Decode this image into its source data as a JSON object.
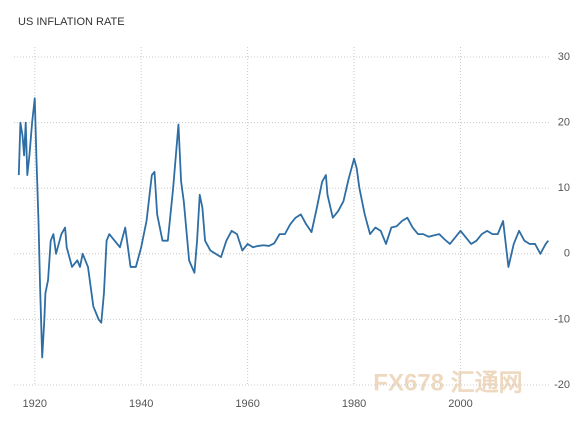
{
  "chart_data": {
    "type": "line",
    "title": "US INFLATION RATE",
    "watermark": "FX678 汇通网",
    "x": [
      1917,
      1917.3,
      1917.7,
      1918,
      1918.3,
      1918.6,
      1919,
      1919.5,
      1920,
      1920.3,
      1920.7,
      1921,
      1921.4,
      1921.8,
      1922,
      1922.5,
      1923,
      1923.5,
      1924,
      1925,
      1925.7,
      1926,
      1927,
      1928,
      1928.5,
      1929,
      1930,
      1931,
      1932,
      1932.5,
      1933,
      1933.5,
      1934,
      1935,
      1936,
      1937,
      1938,
      1939,
      1940,
      1941,
      1942,
      1942.5,
      1943,
      1944,
      1945,
      1946,
      1947,
      1947.5,
      1948,
      1949,
      1950,
      1950.5,
      1951,
      1951.5,
      1952,
      1953,
      1954,
      1955,
      1956,
      1957,
      1958,
      1959,
      1960,
      1961,
      1962,
      1963,
      1964,
      1965,
      1966,
      1967,
      1968,
      1969,
      1970,
      1971,
      1972,
      1973,
      1974,
      1974.7,
      1975,
      1976,
      1977,
      1978,
      1979,
      1980,
      1980.5,
      1981,
      1982,
      1983,
      1984,
      1985,
      1986,
      1987,
      1988,
      1989,
      1990,
      1991,
      1992,
      1993,
      1994,
      1995,
      1996,
      1997,
      1998,
      1999,
      2000,
      2001,
      2002,
      2003,
      2004,
      2005,
      2006,
      2007,
      2008,
      2009,
      2010,
      2011,
      2012,
      2013,
      2014,
      2015,
      2016,
      2016.5
    ],
    "series": [
      {
        "name": "US INFLATION RATE",
        "color": "#2e6ea4",
        "values": [
          12,
          20,
          18,
          15,
          20,
          12,
          15,
          20,
          23.7,
          15,
          5,
          -5,
          -15.8,
          -10,
          -6,
          -4,
          2,
          3,
          0,
          3,
          4,
          1,
          -2,
          -1,
          -2,
          0,
          -2,
          -8,
          -10,
          -10.5,
          -6,
          2,
          3,
          2,
          1,
          4,
          -2,
          -2,
          1,
          5,
          12,
          12.5,
          6,
          2,
          2,
          10,
          19.7,
          11,
          8,
          -1,
          -2.9,
          2,
          9,
          7,
          2,
          0.5,
          0,
          -0.5,
          2,
          3.5,
          3,
          0.5,
          1.5,
          1,
          1.2,
          1.3,
          1.2,
          1.6,
          3,
          3,
          4.5,
          5.5,
          6,
          4.5,
          3.3,
          7,
          11,
          12,
          9,
          5.5,
          6.5,
          8,
          11.5,
          14.5,
          13,
          10,
          6,
          3,
          4,
          3.5,
          1.5,
          4,
          4.2,
          5,
          5.5,
          4,
          3,
          3,
          2.6,
          2.8,
          3,
          2.2,
          1.5,
          2.5,
          3.5,
          2.5,
          1.5,
          2,
          3,
          3.5,
          3,
          3,
          5,
          -2,
          1.5,
          3.5,
          2,
          1.5,
          1.5,
          0,
          1.5,
          2
        ]
      }
    ],
    "xlim": [
      1916.1,
      2017
    ],
    "xticks": [
      1920,
      1940,
      1960,
      1980,
      2000
    ],
    "ylim": [
      -20,
      30
    ],
    "yticks": [
      -20,
      -10,
      0,
      10,
      20,
      30
    ],
    "grid": true
  }
}
